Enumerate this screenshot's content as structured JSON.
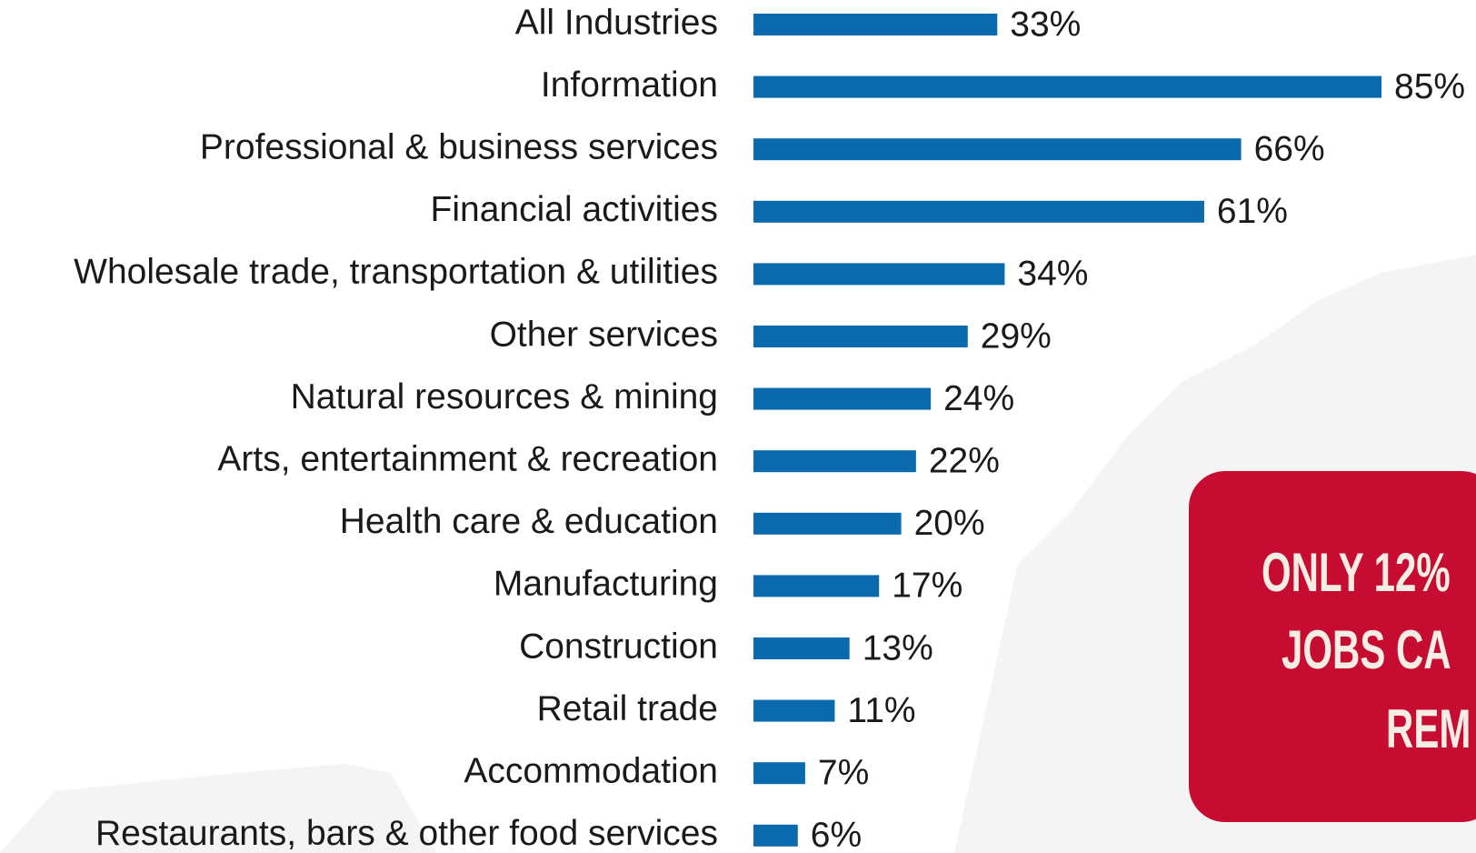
{
  "chart_data": {
    "type": "bar",
    "orientation": "horizontal",
    "color": "#0a6aad",
    "categories": [
      "All Industries",
      "Information",
      "Professional & business services",
      "Financial activities",
      "Wholesale trade, transportation & utilities",
      "Other services",
      "Natural resources & mining",
      "Arts, entertainment & recreation",
      "Health care & education",
      "Manufacturing",
      "Construction",
      "Retail trade",
      "Accommodation",
      "Restaurants, bars & other food services"
    ],
    "values": [
      33,
      85,
      66,
      61,
      34,
      29,
      24,
      22,
      20,
      17,
      13,
      11,
      7,
      6
    ],
    "value_labels": [
      "33%",
      "85%",
      "66%",
      "61%",
      "34%",
      "29%",
      "24%",
      "22%",
      "20%",
      "17%",
      "13%",
      "11%",
      "7%",
      "6%"
    ],
    "annotation": {
      "lines": [
        "ONLY 12%",
        "JOBS CA",
        "REM"
      ],
      "color": "#c60c30"
    }
  }
}
